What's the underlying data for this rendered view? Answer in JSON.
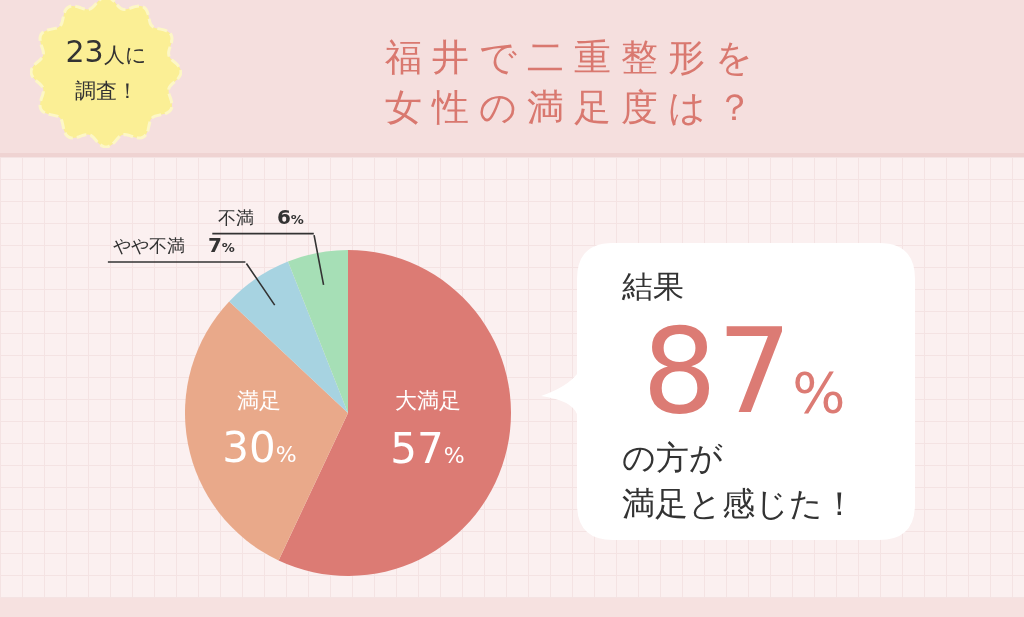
{
  "chart_data": {
    "type": "pie",
    "title": "福井で二重整形を女性の満足度は？",
    "categories": [
      "大満足",
      "満足",
      "やや不満",
      "不満"
    ],
    "values": [
      57,
      30,
      7,
      6
    ],
    "value_labels": [
      "57%",
      "30%",
      "7%",
      "6%"
    ],
    "colors": [
      "#dc7b74",
      "#e9a98a",
      "#a7d3e1",
      "#a6dfb6"
    ],
    "annotations": [
      "23人に調査！",
      "結果",
      "87%",
      "の方が",
      "満足と感じた！"
    ]
  }
}
